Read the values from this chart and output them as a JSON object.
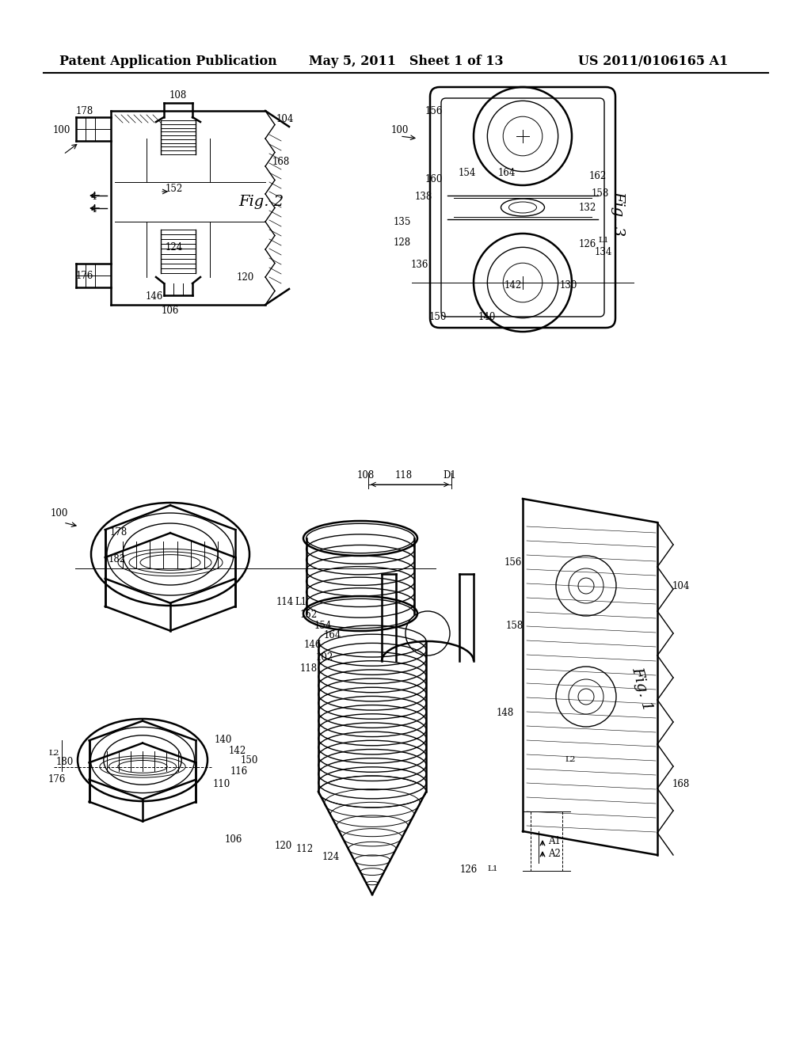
{
  "background_color": "#ffffff",
  "header_left": "Patent Application Publication",
  "header_center": "May 5, 2011   Sheet 1 of 13",
  "header_right": "US 2011/0106165 A1",
  "header_fontsize": 11.5,
  "line_color": "#000000",
  "fig_label_fontsize": 14,
  "annot_fontsize": 8.5,
  "annot_fontsize_sm": 7.5
}
